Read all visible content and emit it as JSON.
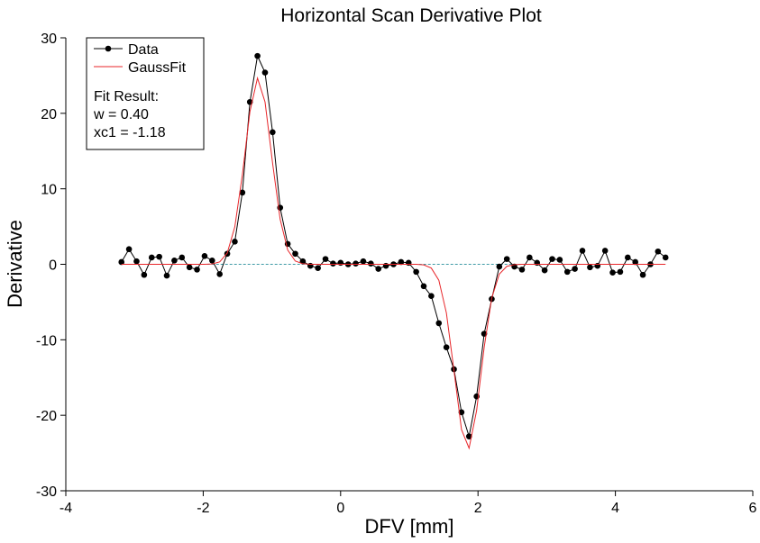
{
  "chart_data": {
    "type": "line",
    "title": "Horizontal Scan Derivative Plot",
    "x_label": "DFV [mm]",
    "y_label": "Derivative",
    "x": [
      -3.19,
      -3.08,
      -2.97,
      -2.86,
      -2.75,
      -2.64,
      -2.53,
      -2.42,
      -2.31,
      -2.2,
      -2.09,
      -1.98,
      -1.87,
      -1.76,
      -1.65,
      -1.54,
      -1.43,
      -1.32,
      -1.21,
      -1.1,
      -0.99,
      -0.88,
      -0.77,
      -0.66,
      -0.55,
      -0.44,
      -0.33,
      -0.22,
      -0.11,
      0.0,
      0.11,
      0.22,
      0.33,
      0.44,
      0.55,
      0.66,
      0.77,
      0.88,
      0.99,
      1.1,
      1.21,
      1.32,
      1.43,
      1.54,
      1.65,
      1.76,
      1.87,
      1.98,
      2.09,
      2.2,
      2.31,
      2.42,
      2.53,
      2.64,
      2.75,
      2.86,
      2.97,
      3.08,
      3.19,
      3.3,
      3.41,
      3.52,
      3.63,
      3.74,
      3.85,
      3.96,
      4.07,
      4.18,
      4.29,
      4.4,
      4.51,
      4.62,
      4.73
    ],
    "series": [
      {
        "name": "Data",
        "color": "#000000",
        "marker": true,
        "values": [
          0.3,
          2.0,
          0.4,
          -1.4,
          0.9,
          1.0,
          -1.5,
          0.5,
          0.9,
          -0.4,
          -0.7,
          1.1,
          0.5,
          -1.3,
          1.4,
          3.0,
          9.5,
          21.5,
          27.6,
          25.4,
          17.5,
          7.5,
          2.7,
          1.4,
          0.4,
          -0.2,
          -0.5,
          0.7,
          0.1,
          0.2,
          0.0,
          0.1,
          0.4,
          0.1,
          -0.6,
          -0.2,
          0.0,
          0.3,
          0.2,
          -1.0,
          -2.9,
          -4.2,
          -7.8,
          -11.0,
          -13.9,
          -19.6,
          -22.8,
          -17.5,
          -9.2,
          -4.6,
          -0.3,
          0.7,
          -0.3,
          -0.7,
          0.9,
          0.2,
          -0.8,
          0.7,
          0.6,
          -1.0,
          -0.6,
          1.8,
          -0.4,
          -0.2,
          1.8,
          -1.1,
          -1.0,
          0.9,
          0.3,
          -1.4,
          0.0,
          1.7,
          0.9
        ]
      },
      {
        "name": "GaussFit",
        "color": "#e8262a",
        "marker": false,
        "values": [
          0,
          0,
          0,
          0,
          0,
          0,
          0,
          0,
          0,
          0,
          0,
          0,
          0.05,
          0.32,
          1.49,
          4.96,
          11.85,
          20.22,
          24.67,
          21.5,
          13.39,
          5.96,
          1.89,
          0.43,
          0.07,
          0,
          0,
          0,
          0,
          0,
          0,
          0,
          0,
          0,
          0,
          0,
          0,
          0,
          0,
          0,
          -0.08,
          -0.5,
          -2.11,
          -6.45,
          -14.05,
          -21.9,
          -24.36,
          -19.37,
          -11.0,
          -4.47,
          -1.3,
          -0.27,
          -0.04,
          0,
          0,
          0,
          0,
          0,
          0,
          0,
          0,
          0,
          0,
          0,
          0,
          0,
          0,
          0,
          0,
          0,
          0,
          0,
          0
        ]
      }
    ],
    "hline": {
      "value": 0,
      "color": "#3f9aa6"
    },
    "annotation": [
      "Fit Result:",
      "w = 0.40",
      "xc1 = -1.18"
    ],
    "legend": "upper left",
    "xlim": [
      -4,
      6
    ],
    "xticks": [
      -4,
      -2,
      0,
      2,
      4,
      6
    ],
    "ylim": [
      -30,
      30
    ],
    "yticks": [
      -30,
      -20,
      -10,
      0,
      10,
      20,
      30
    ],
    "grid": false
  }
}
